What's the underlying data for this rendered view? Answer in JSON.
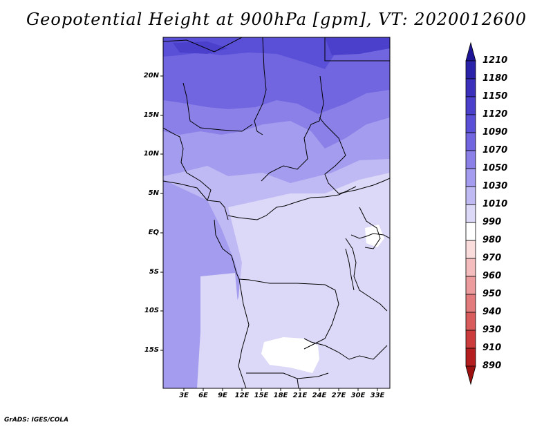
{
  "title": "Geopotential Height at 900hPa [gpm], VT: 2020012600",
  "credit": "GrADS: IGES/COLA",
  "map": {
    "lon_range": [
      0,
      35
    ],
    "lat_range": [
      -20,
      25
    ],
    "lat_labels": [
      "20N",
      "15N",
      "10N",
      "5N",
      "EQ",
      "5S",
      "10S",
      "15S"
    ],
    "lon_labels": [
      "3E",
      "6E",
      "9E",
      "12E",
      "15E",
      "18E",
      "21E",
      "24E",
      "27E",
      "30E",
      "33E"
    ]
  },
  "colorbar": {
    "levels": [
      "1210",
      "1180",
      "1150",
      "1120",
      "1090",
      "1070",
      "1050",
      "1030",
      "1010",
      "990",
      "980",
      "970",
      "960",
      "950",
      "940",
      "930",
      "910",
      "890"
    ],
    "colors": [
      "#1e1496",
      "#2a22a8",
      "#3a30bc",
      "#4a40cc",
      "#5a50d8",
      "#7266e0",
      "#8a80e8",
      "#a49cee",
      "#c0baf4",
      "#dcd8f8",
      "#ffffff",
      "#fadcdc",
      "#f4bcbc",
      "#ec9c9c",
      "#e27c7c",
      "#d85c5c",
      "#cc3c3c",
      "#b41e1e",
      "#9c1010"
    ]
  }
}
